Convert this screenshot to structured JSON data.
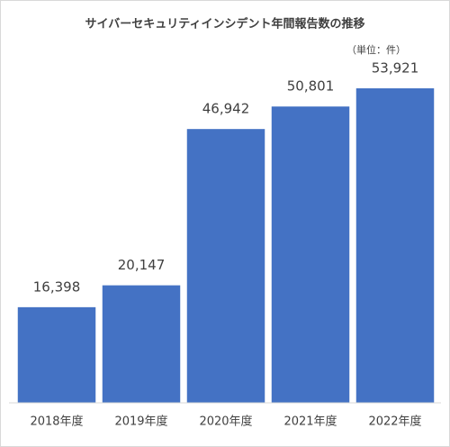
{
  "chart_data": {
    "type": "bar",
    "title": "サイバーセキュリティインシデント年間報告数の推移",
    "unit_note": "（単位：件）",
    "categories": [
      "2018年度",
      "2019年度",
      "2020年度",
      "2021年度",
      "2022年度"
    ],
    "values": [
      16398,
      20147,
      46942,
      50801,
      53921
    ],
    "value_labels": [
      "16,398",
      "20,147",
      "46,942",
      "50,801",
      "53,921"
    ],
    "color": "#4472c4"
  }
}
